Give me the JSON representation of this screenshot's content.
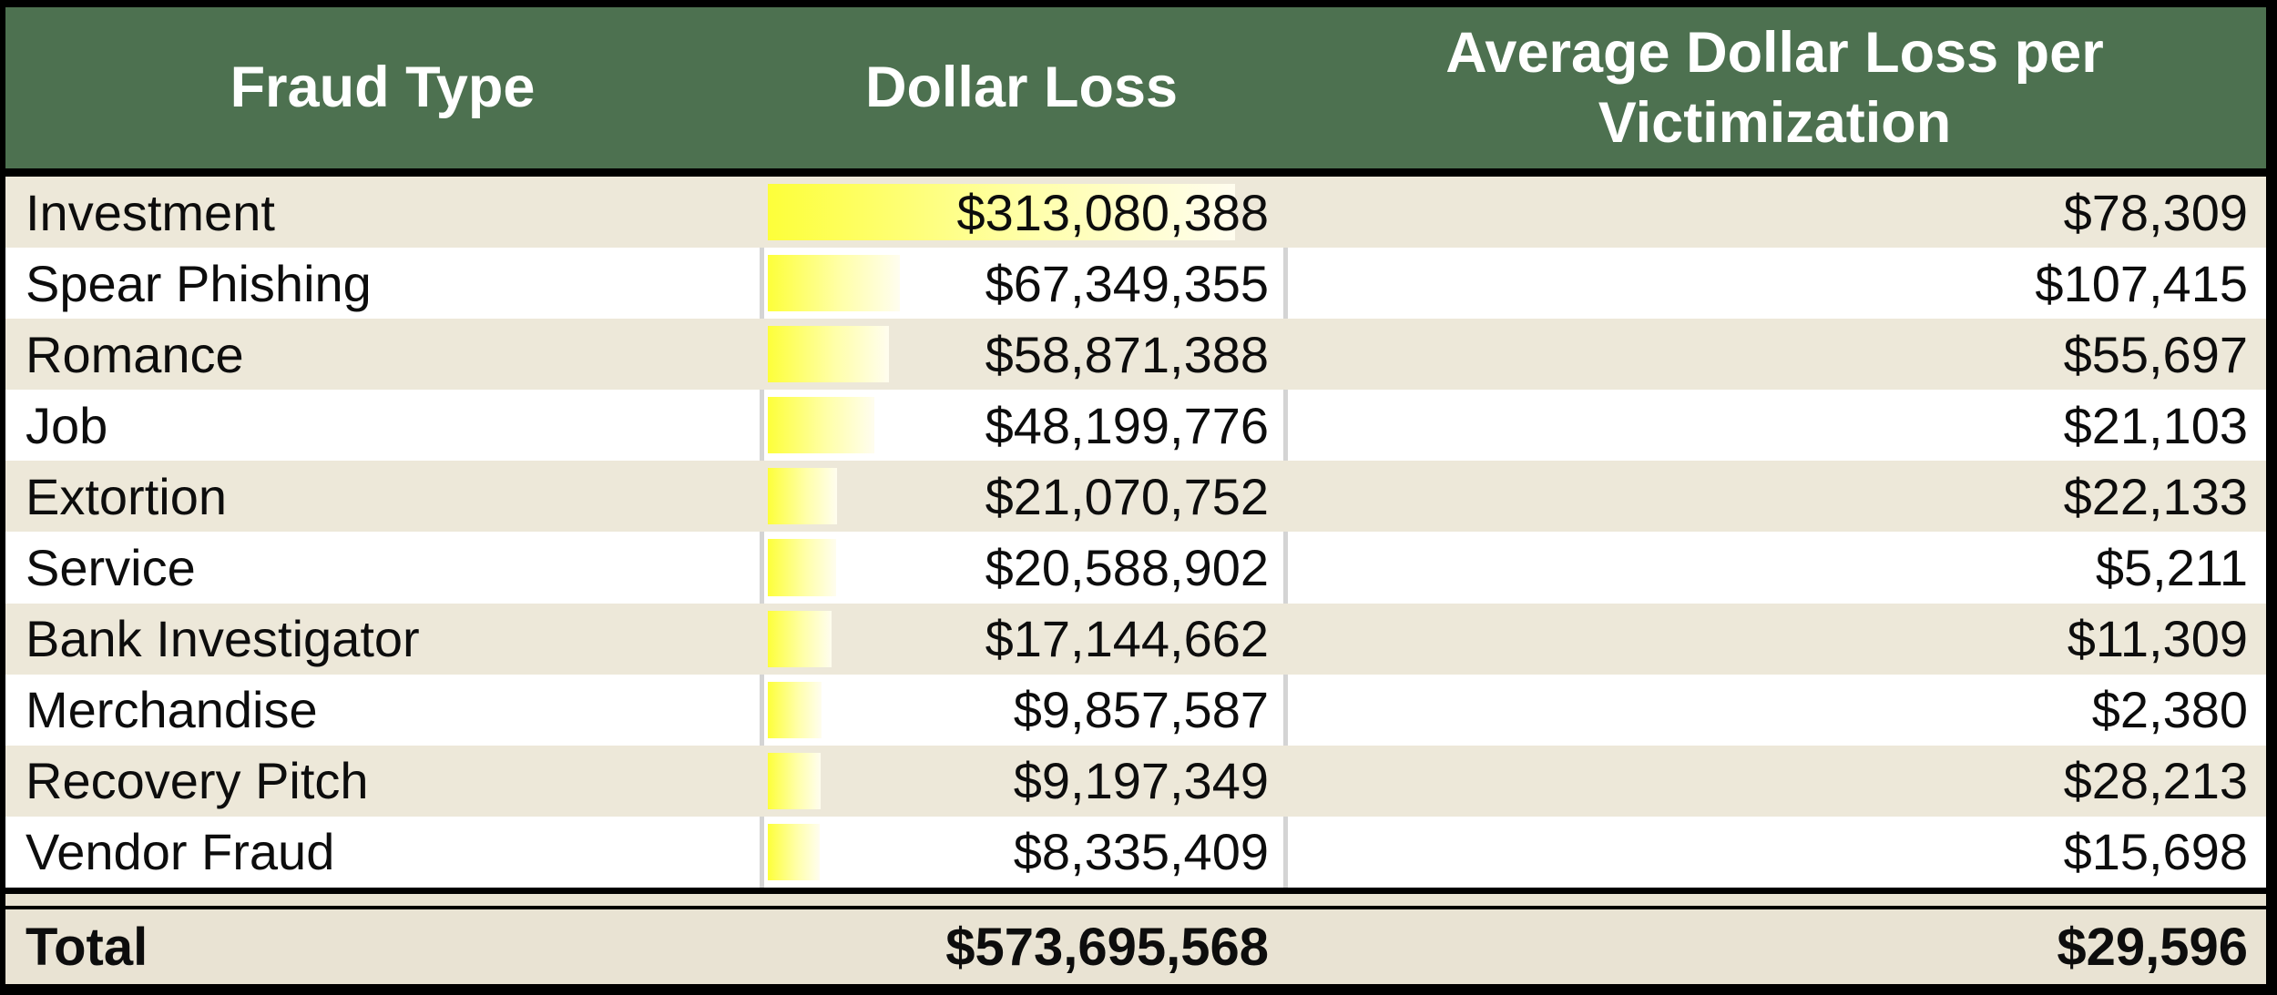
{
  "header": {
    "col1": "Fraud Type",
    "col2": "Dollar Loss",
    "col3": "Average Dollar Loss per Victimization"
  },
  "table": {
    "rows": [
      {
        "fraud_type": "Investment",
        "dollar_loss": "$313,080,388",
        "dollar_loss_value": 313080388,
        "avg_loss": "$78,309",
        "avg_loss_value": 78309
      },
      {
        "fraud_type": "Spear Phishing",
        "dollar_loss": "$67,349,355",
        "dollar_loss_value": 67349355,
        "avg_loss": "$107,415",
        "avg_loss_value": 107415
      },
      {
        "fraud_type": "Romance",
        "dollar_loss": "$58,871,388",
        "dollar_loss_value": 58871388,
        "avg_loss": "$55,697",
        "avg_loss_value": 55697
      },
      {
        "fraud_type": "Job",
        "dollar_loss": "$48,199,776",
        "dollar_loss_value": 48199776,
        "avg_loss": "$21,103",
        "avg_loss_value": 21103
      },
      {
        "fraud_type": "Extortion",
        "dollar_loss": "$21,070,752",
        "dollar_loss_value": 21070752,
        "avg_loss": "$22,133",
        "avg_loss_value": 22133
      },
      {
        "fraud_type": "Service",
        "dollar_loss": "$20,588,902",
        "dollar_loss_value": 20588902,
        "avg_loss": "$5,211",
        "avg_loss_value": 5211
      },
      {
        "fraud_type": "Bank Investigator",
        "dollar_loss": "$17,144,662",
        "dollar_loss_value": 17144662,
        "avg_loss": "$11,309",
        "avg_loss_value": 11309
      },
      {
        "fraud_type": "Merchandise",
        "dollar_loss": "$9,857,587",
        "dollar_loss_value": 9857587,
        "avg_loss": "$2,380",
        "avg_loss_value": 2380
      },
      {
        "fraud_type": "Recovery Pitch",
        "dollar_loss": "$9,197,349",
        "dollar_loss_value": 9197349,
        "avg_loss": "$28,213",
        "avg_loss_value": 28213
      },
      {
        "fraud_type": "Vendor Fraud",
        "dollar_loss": "$8,335,409",
        "dollar_loss_value": 8335409,
        "avg_loss": "$15,698",
        "avg_loss_value": 15698
      }
    ],
    "total": {
      "label": "Total",
      "dollar_loss": "$573,695,568",
      "avg_loss": "$29,596"
    }
  },
  "colors": {
    "header_bg": "#4d7150",
    "header_text": "#ffffff",
    "row_alt_bg": "#ede8d9",
    "row_bg": "#ffffff",
    "total_bg": "#e9e3d3",
    "data_bar_yellow": "#fdff3a",
    "grid_line": "#d4d4d4",
    "frame_border": "#000000"
  },
  "chart_data": {
    "type": "table",
    "title": "",
    "columns": [
      "Fraud Type",
      "Dollar Loss",
      "Average Dollar Loss per Victimization"
    ],
    "rows": [
      [
        "Investment",
        313080388,
        78309
      ],
      [
        "Spear Phishing",
        67349355,
        107415
      ],
      [
        "Romance",
        58871388,
        55697
      ],
      [
        "Job",
        48199776,
        21103
      ],
      [
        "Extortion",
        21070752,
        22133
      ],
      [
        "Service",
        20588902,
        5211
      ],
      [
        "Bank Investigator",
        17144662,
        11309
      ],
      [
        "Merchandise",
        9857587,
        2380
      ],
      [
        "Recovery Pitch",
        9197349,
        28213
      ],
      [
        "Vendor Fraud",
        8335409,
        15698
      ]
    ],
    "total_row": [
      "Total",
      573695568,
      29596
    ],
    "value_format": "$#,##0",
    "layout_hints": {
      "dollar_loss_column_has_gradient_data_bars": true,
      "data_bar_scale": "width% = 10 + 80 * (value - min) / (max - min)",
      "alternating_row_fill": [
        "beige",
        "white"
      ],
      "gridlines_visible_on_white_rows_only": true
    }
  }
}
